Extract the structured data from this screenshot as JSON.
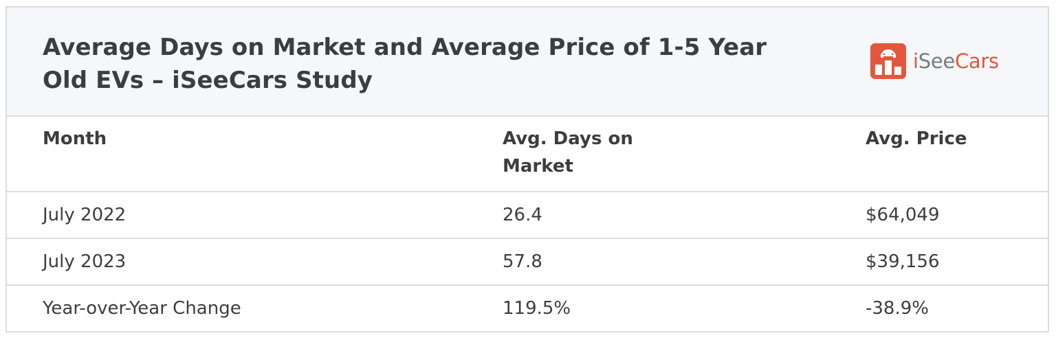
{
  "table": {
    "title": "Average Days on Market and Average Price of 1-5 Year Old EVs – iSeeCars Study",
    "logo": {
      "icon": "iseecars-logo-icon",
      "text_i": "i",
      "text_see": "See",
      "text_cars": "Cars",
      "brand_color": "#e2583e"
    },
    "headers": {
      "month": "Month",
      "days": "Avg. Days on Market",
      "price": "Avg. Price"
    },
    "rows": [
      {
        "month": "July 2022",
        "days": "26.4",
        "price": "$64,049"
      },
      {
        "month": "July 2023",
        "days": "57.8",
        "price": "$39,156"
      },
      {
        "month": "Year-over-Year Change",
        "days": "119.5%",
        "price": "-38.9%"
      }
    ]
  }
}
